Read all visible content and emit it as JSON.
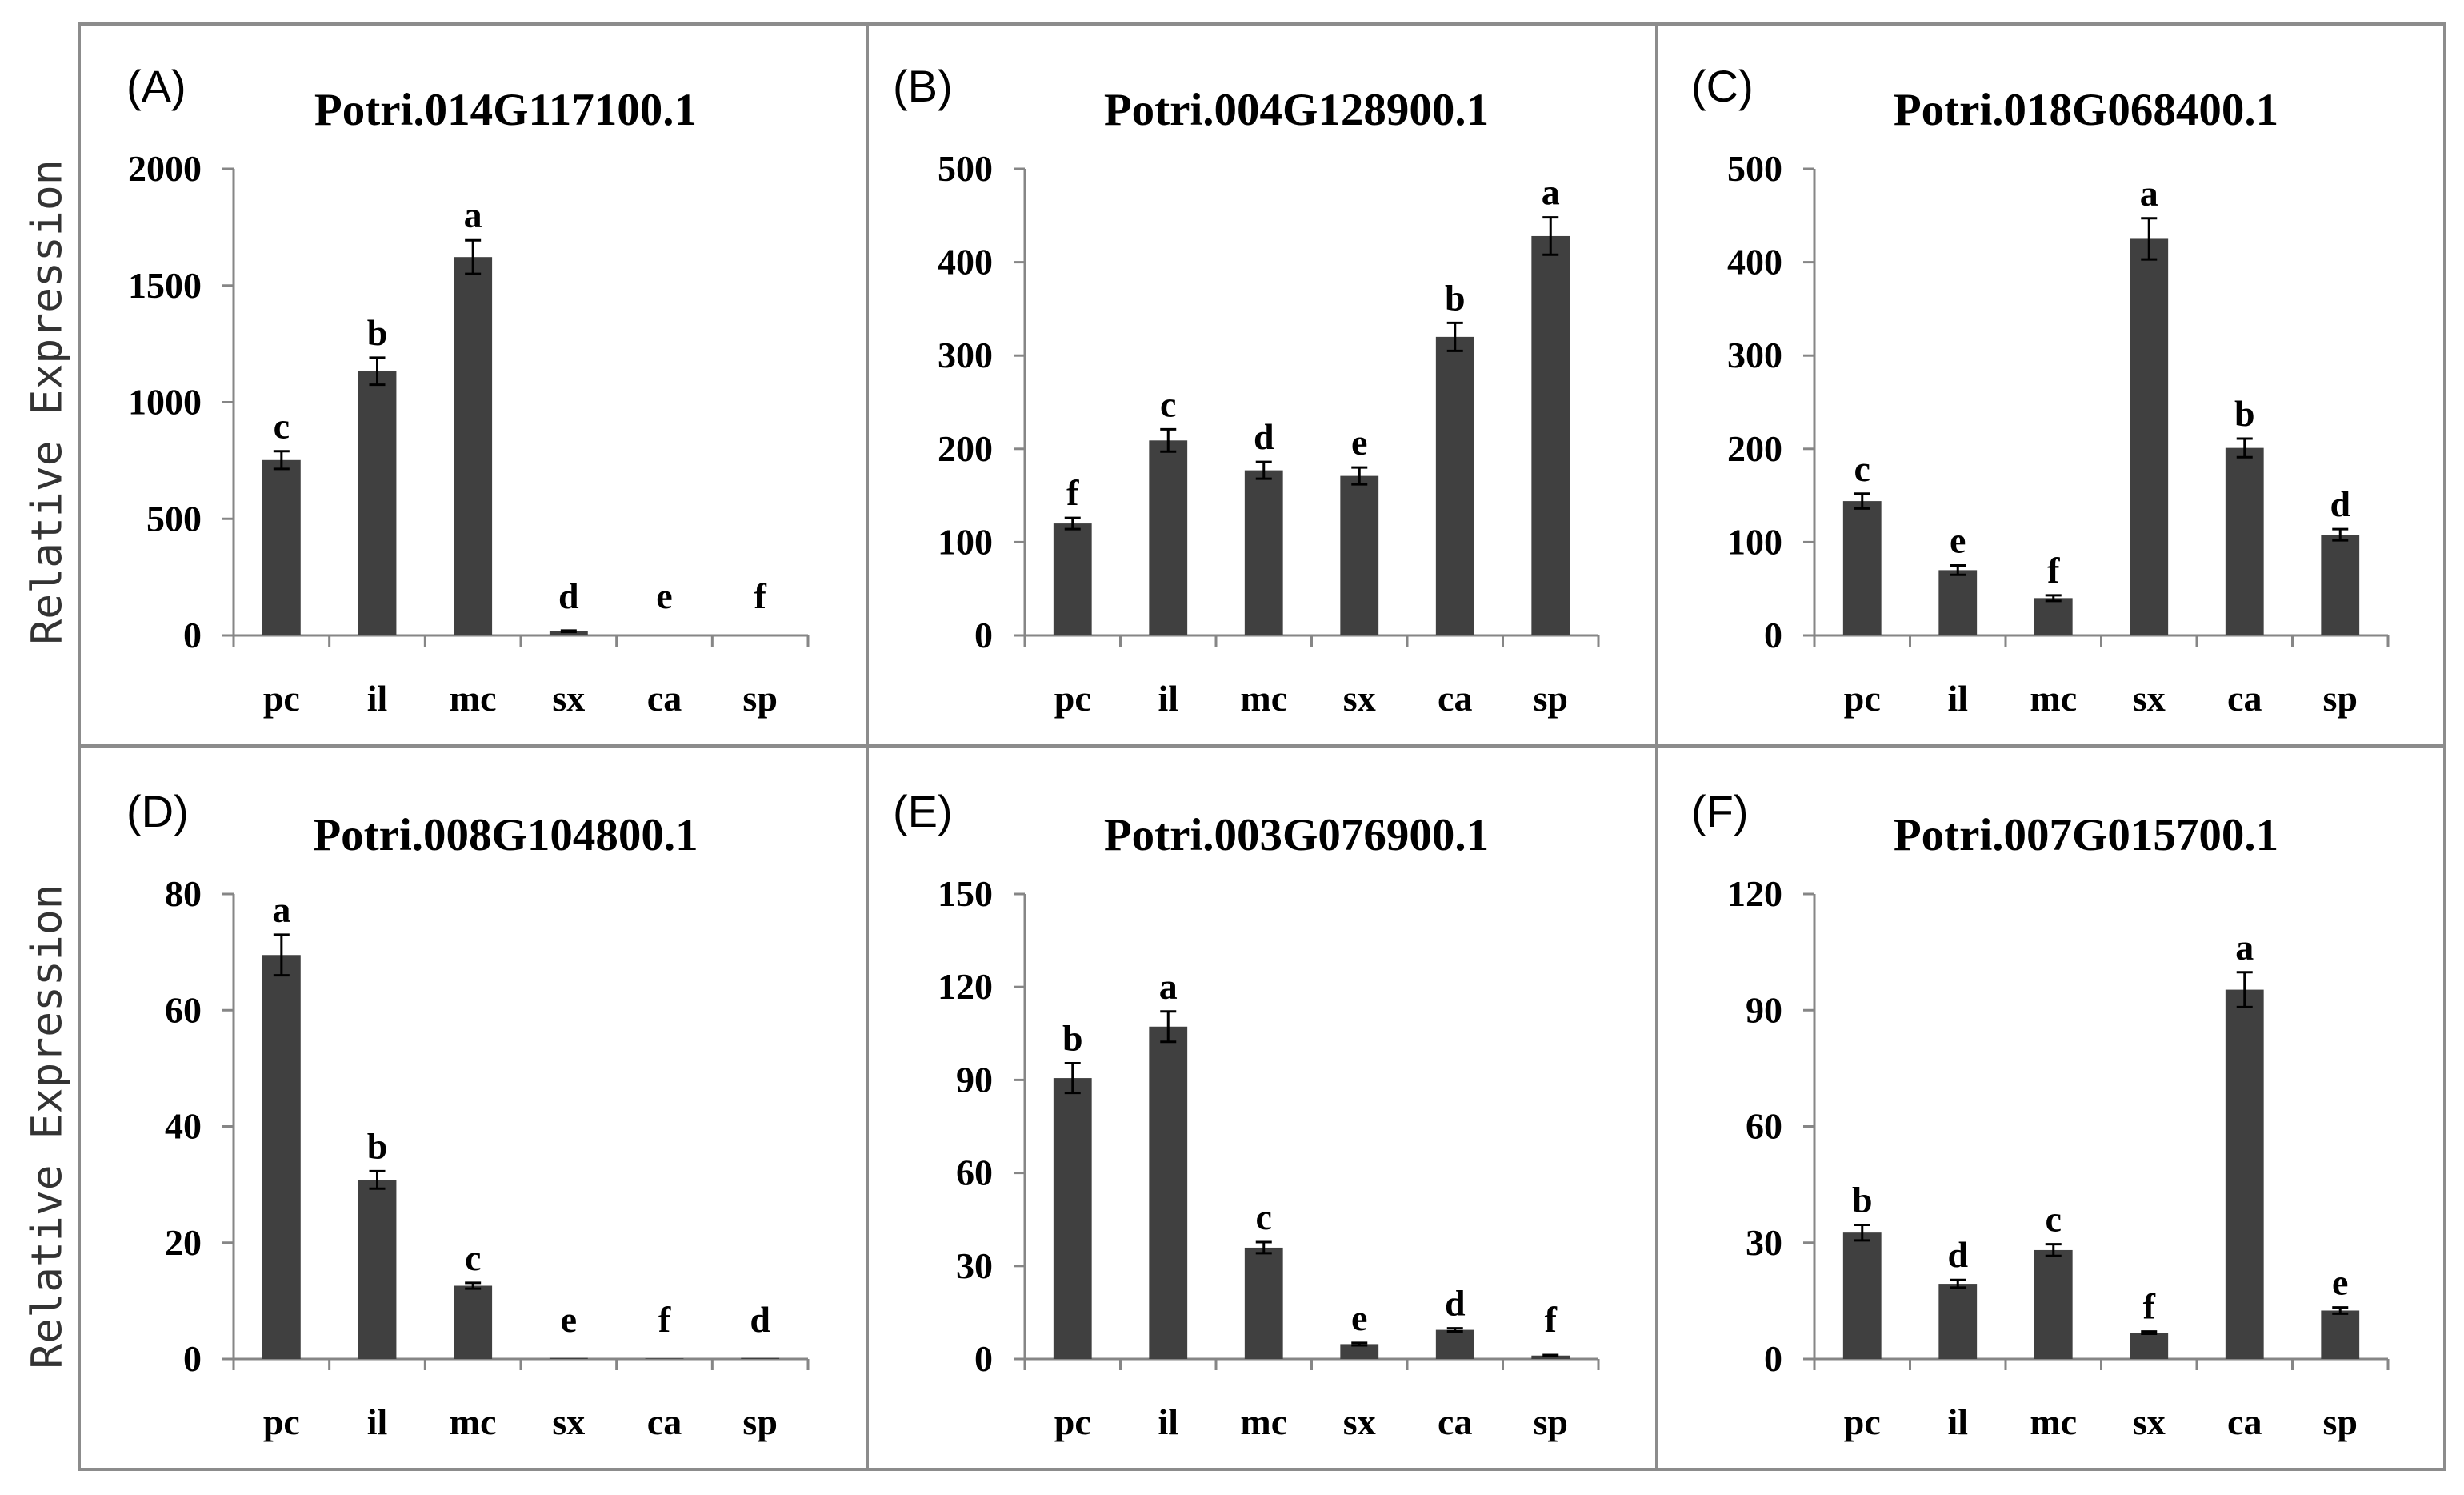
{
  "figure": {
    "background": "#ffffff",
    "bar_color": "#404040",
    "border_color": "#8c8c8c",
    "axis_color": "#868686"
  },
  "chart_data": [
    {
      "type": "bar",
      "panel_label": "(A)",
      "title": "Potri.014G117100.1",
      "ylabel": "Relative Expression",
      "categories": [
        "pc",
        "il",
        "mc",
        "sx",
        "ca",
        "sp"
      ],
      "values": [
        752,
        1133,
        1622,
        18,
        2,
        1
      ],
      "errors": [
        38,
        58,
        72,
        3,
        0,
        0
      ],
      "significance": [
        "c",
        "b",
        "a",
        "d",
        "e",
        "f"
      ],
      "ylim": [
        0,
        2000
      ],
      "yticks": [
        0,
        500,
        1000,
        1500,
        2000
      ]
    },
    {
      "type": "bar",
      "panel_label": "(B)",
      "title": "Potri.004G128900.1",
      "categories": [
        "pc",
        "il",
        "mc",
        "sx",
        "ca",
        "sp"
      ],
      "values": [
        120,
        209,
        177,
        171,
        320,
        428
      ],
      "errors": [
        6,
        12,
        9,
        9,
        15,
        20
      ],
      "significance": [
        "f",
        "c",
        "d",
        "e",
        "b",
        "a"
      ],
      "ylim": [
        0,
        500
      ],
      "yticks": [
        0,
        100,
        200,
        300,
        400,
        500
      ]
    },
    {
      "type": "bar",
      "panel_label": "(C)",
      "title": "Potri.018G068400.1",
      "categories": [
        "pc",
        "il",
        "mc",
        "sx",
        "ca",
        "sp"
      ],
      "values": [
        144,
        70,
        40,
        425,
        201,
        108
      ],
      "errors": [
        8,
        5,
        3,
        22,
        10,
        6
      ],
      "significance": [
        "c",
        "e",
        "f",
        "a",
        "b",
        "d"
      ],
      "ylim": [
        0,
        500
      ],
      "yticks": [
        0,
        100,
        200,
        300,
        400,
        500
      ]
    },
    {
      "type": "bar",
      "panel_label": "(D)",
      "title": "Potri.008G104800.1",
      "ylabel": "Relative Expression",
      "categories": [
        "pc",
        "il",
        "mc",
        "sx",
        "ca",
        "sp"
      ],
      "values": [
        69.5,
        30.8,
        12.6,
        0.2,
        0.1,
        0.2
      ],
      "errors": [
        3.5,
        1.5,
        0.5,
        0,
        0,
        0
      ],
      "significance": [
        "a",
        "b",
        "c",
        "e",
        "f",
        "d"
      ],
      "ylim": [
        0,
        80
      ],
      "yticks": [
        0,
        20,
        40,
        60,
        80
      ]
    },
    {
      "type": "bar",
      "panel_label": "(E)",
      "title": "Potri.003G076900.1",
      "categories": [
        "pc",
        "il",
        "mc",
        "sx",
        "ca",
        "sp"
      ],
      "values": [
        90.6,
        107.2,
        35.9,
        4.8,
        9.4,
        1.1
      ],
      "errors": [
        4.8,
        4.9,
        1.8,
        0.4,
        0.5,
        0.2
      ],
      "significance": [
        "b",
        "a",
        "c",
        "e",
        "d",
        "f"
      ],
      "ylim": [
        0,
        150
      ],
      "yticks": [
        0,
        30,
        60,
        90,
        120,
        150
      ]
    },
    {
      "type": "bar",
      "panel_label": "(F)",
      "title": "Potri.007G015700.1",
      "categories": [
        "pc",
        "il",
        "mc",
        "sx",
        "ca",
        "sp"
      ],
      "values": [
        32.6,
        19.4,
        28.1,
        6.8,
        95.3,
        12.5
      ],
      "errors": [
        2.0,
        1.0,
        1.5,
        0.3,
        4.5,
        0.8
      ],
      "significance": [
        "b",
        "d",
        "c",
        "f",
        "a",
        "e"
      ],
      "ylim": [
        0,
        120
      ],
      "yticks": [
        0,
        30,
        60,
        90,
        120
      ]
    }
  ]
}
